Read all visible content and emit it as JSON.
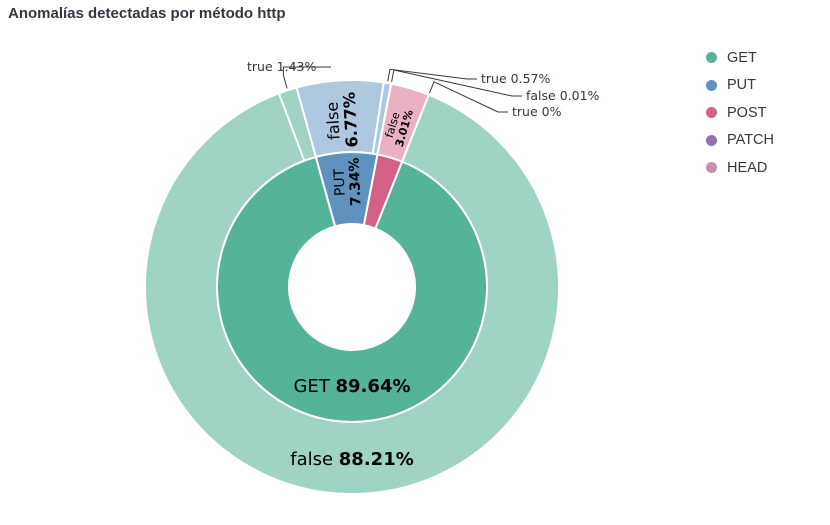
{
  "title": "Anomalías detectadas por método http",
  "legend": {
    "placement": "top-right",
    "items": [
      {
        "label": "GET",
        "color": "#54b399"
      },
      {
        "label": "PUT",
        "color": "#6092c0"
      },
      {
        "label": "POST",
        "color": "#d36086"
      },
      {
        "label": "PATCH",
        "color": "#9170b8"
      },
      {
        "label": "HEAD",
        "color": "#ca8eae"
      }
    ]
  },
  "chart_data": {
    "type": "pie",
    "subtype": "nested-donut",
    "inner_ring": [
      {
        "label": "GET",
        "percent": 89.64,
        "percent_text": "89.64%",
        "color": "#54b399",
        "show_label": true
      },
      {
        "label": "PUT",
        "percent": 7.34,
        "percent_text": "7.34%",
        "color": "#6092c0",
        "show_label": true
      },
      {
        "label": "POST",
        "percent": 3.02,
        "percent_text": "",
        "color": "#d36086",
        "show_label": false
      }
    ],
    "outer_ring": [
      {
        "parent": "GET",
        "label": "false",
        "percent": 88.21,
        "percent_text": "88.21%",
        "color": "#9fd3c4",
        "label_style": "inside"
      },
      {
        "parent": "GET",
        "label": "true",
        "percent": 1.43,
        "percent_text": "1.43%",
        "color": "#9fd3c4",
        "label_style": "leader"
      },
      {
        "parent": "PUT",
        "label": "false",
        "percent": 6.77,
        "percent_text": "6.77%",
        "color": "#aec8e0",
        "label_style": "inside"
      },
      {
        "parent": "PUT",
        "label": "true",
        "percent": 0.57,
        "percent_text": "0.57%",
        "color": "#aec8e0",
        "label_style": "leader"
      },
      {
        "parent": "POST",
        "label": "false",
        "percent": 0.01,
        "percent_text": "0.01%",
        "color": "#ecb0c3",
        "label_style": "leader"
      },
      {
        "parent": "POST",
        "label": "false",
        "percent": 3.01,
        "percent_text": "3.01%",
        "color": "#ecb0c3",
        "label_style": "inside"
      },
      {
        "parent": "POST",
        "label": "true",
        "percent": 0,
        "percent_text": "0%",
        "color": "#ecb0c3",
        "label_style": "leader"
      }
    ]
  }
}
